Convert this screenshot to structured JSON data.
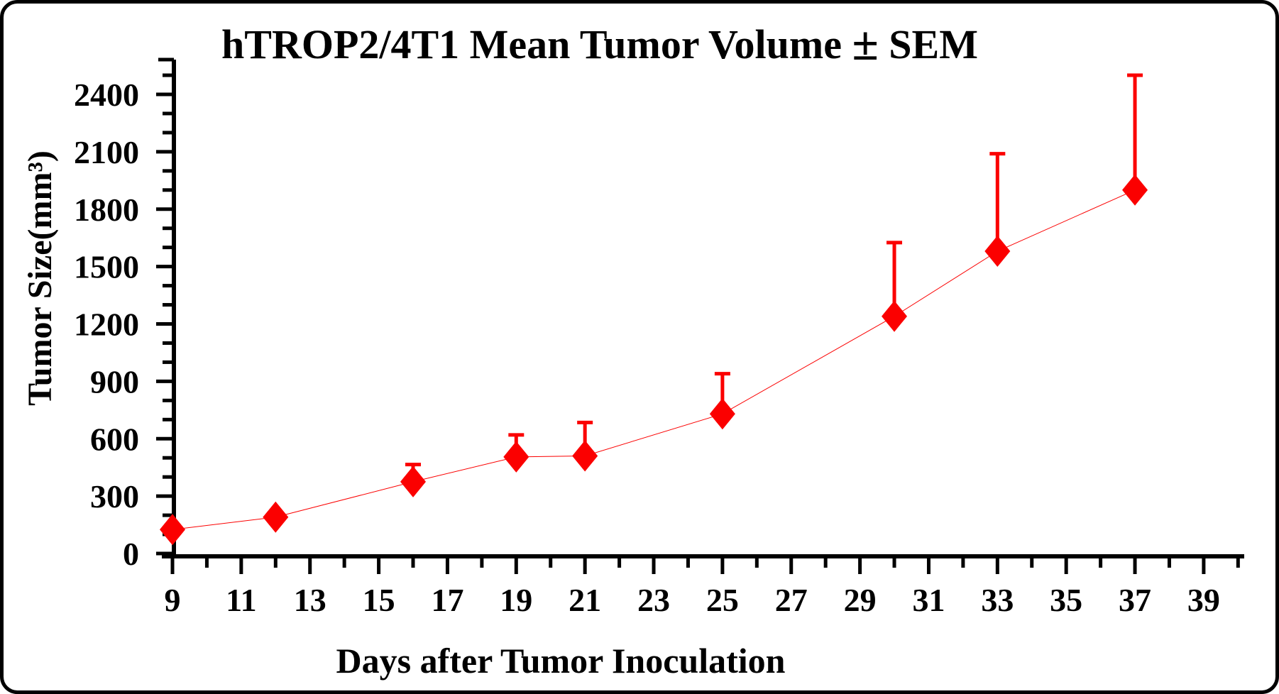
{
  "chart_data": {
    "type": "line",
    "title": "hTROP2/4T1 Mean Tumor Volume ± SEM",
    "xlabel": "Days after Tumor Inoculation",
    "ylabel": "Tumor Size(mm³)",
    "x_tick_labels": [
      9,
      11,
      13,
      15,
      17,
      19,
      21,
      23,
      25,
      27,
      29,
      31,
      33,
      35,
      37,
      39
    ],
    "x_minor_ticks": [
      10,
      12,
      14,
      16,
      18,
      20,
      22,
      24,
      26,
      28,
      30,
      32,
      34,
      36,
      38,
      40
    ],
    "y_tick_labels": [
      0,
      300,
      600,
      900,
      1200,
      1500,
      1800,
      2100,
      2400
    ],
    "y_minor_tick_step": 100,
    "y_minor_tick_max": 2500,
    "xlim": [
      9,
      40.3
    ],
    "ylim": [
      0,
      2580
    ],
    "grid": false,
    "legend_position": "none",
    "axis_color": "#000000",
    "series": [
      {
        "name": "hTROP2/4T1",
        "color": "#fb0000",
        "marker": "diamond",
        "error_bars": "upper-SEM",
        "x": [
          9,
          12,
          16,
          19,
          21,
          25,
          30,
          33,
          37
        ],
        "y": [
          125,
          190,
          375,
          505,
          510,
          730,
          1240,
          1580,
          1900
        ],
        "sem_upper": [
          0,
          0,
          90,
          115,
          175,
          210,
          385,
          510,
          600
        ]
      }
    ]
  }
}
